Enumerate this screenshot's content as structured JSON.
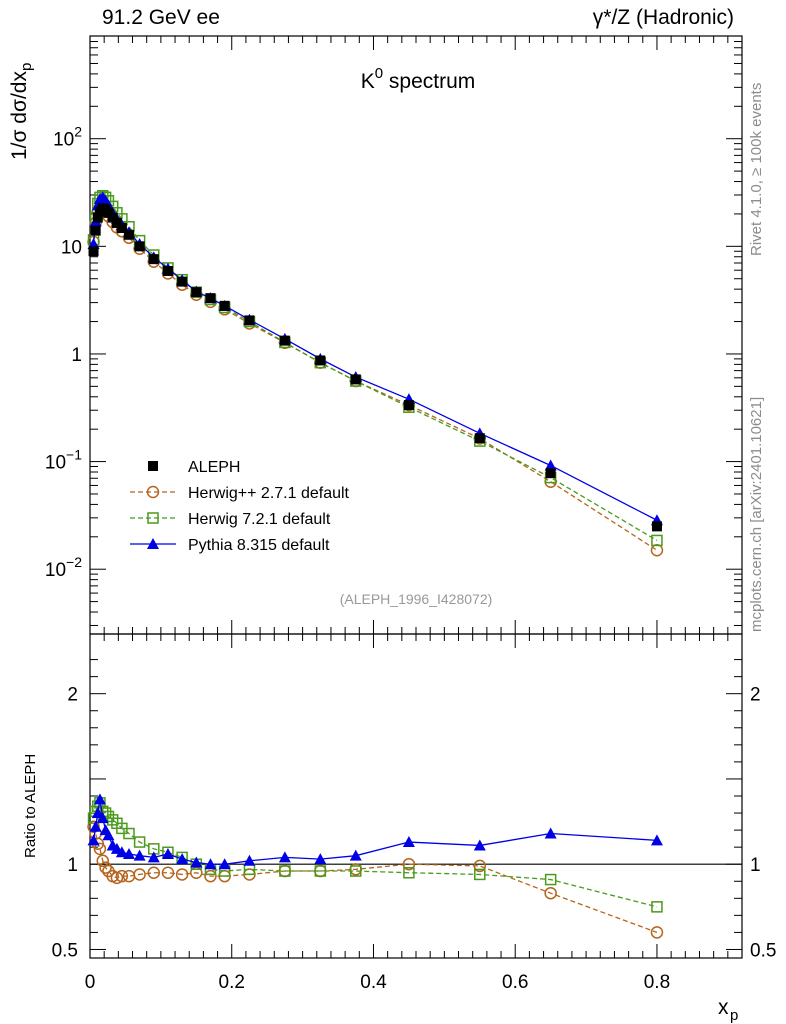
{
  "header": {
    "left": "91.2 GeV ee",
    "right": "γ*/Z (Hadronic)"
  },
  "side": {
    "rivet": "Rivet 4.1.0, ≥ 100k events",
    "mcplots": "mcplots.cern.ch [arXiv:2401.10621]"
  },
  "chart_data": [
    {
      "type": "line",
      "panel": "main",
      "title_base": "K",
      "title_sup": "0",
      "title_rest": " spectrum",
      "ylabel": "1/σ  dσ/dx",
      "ylabel_sub": "p",
      "yscale": "log",
      "xlim": [
        0,
        0.92
      ],
      "ylim": [
        0.0025,
        900
      ],
      "x_ticks": [
        0,
        0.2,
        0.4,
        0.6,
        0.8
      ],
      "y_tick_labels": [
        {
          "value": 0.01,
          "base": "10",
          "exp": "−2"
        },
        {
          "value": 0.1,
          "base": "10",
          "exp": "−1"
        },
        {
          "value": 1,
          "base": "1",
          "exp": ""
        },
        {
          "value": 10,
          "base": "10",
          "exp": ""
        },
        {
          "value": 100,
          "base": "10",
          "exp": "2"
        }
      ],
      "watermark": "(ALEPH_1996_I428072)",
      "legend_position": "lower-left",
      "x": [
        0.005,
        0.008,
        0.011,
        0.014,
        0.018,
        0.022,
        0.026,
        0.032,
        0.038,
        0.045,
        0.055,
        0.07,
        0.09,
        0.11,
        0.13,
        0.15,
        0.17,
        0.19,
        0.225,
        0.275,
        0.325,
        0.375,
        0.45,
        0.55,
        0.65,
        0.8
      ],
      "series": [
        {
          "name": "ALEPH",
          "color": "#000000",
          "marker": "square-filled",
          "dashed": false,
          "values": [
            9.0,
            14.0,
            18.5,
            21.0,
            22.5,
            22.0,
            20.5,
            18.5,
            16.5,
            14.8,
            12.8,
            10.0,
            7.6,
            5.9,
            4.7,
            3.75,
            3.3,
            2.8,
            2.05,
            1.33,
            0.87,
            0.58,
            0.335,
            0.165,
            0.078,
            0.025
          ]
        },
        {
          "name": "Herwig++ 2.7.1 default",
          "color": "#b5651d",
          "marker": "circle-open",
          "dashed": true,
          "values": [
            11.0,
            16.5,
            21.0,
            23.0,
            23.0,
            21.0,
            19.0,
            16.8,
            15.0,
            13.8,
            12.0,
            9.5,
            7.2,
            5.6,
            4.4,
            3.55,
            3.05,
            2.6,
            1.92,
            1.27,
            0.83,
            0.56,
            0.335,
            0.164,
            0.065,
            0.015
          ]
        },
        {
          "name": "Herwig 7.2.1 default",
          "color": "#4a9a1c",
          "marker": "square-open",
          "dashed": true,
          "values": [
            11.5,
            18.5,
            25.0,
            28.5,
            29.5,
            28.5,
            26.5,
            23.5,
            20.5,
            18.0,
            15.2,
            11.3,
            8.3,
            6.3,
            4.9,
            3.75,
            3.2,
            2.7,
            2.0,
            1.28,
            0.83,
            0.56,
            0.32,
            0.155,
            0.071,
            0.0185
          ]
        },
        {
          "name": "Pythia 8.315 default",
          "color": "#0000e6",
          "marker": "triangle-filled",
          "dashed": false,
          "values": [
            10.5,
            17.0,
            24.0,
            27.5,
            28.5,
            26.5,
            24.0,
            20.5,
            18.0,
            15.8,
            13.5,
            10.5,
            7.9,
            6.2,
            4.85,
            3.8,
            3.3,
            2.8,
            2.08,
            1.38,
            0.9,
            0.61,
            0.38,
            0.183,
            0.092,
            0.0285
          ]
        }
      ]
    },
    {
      "type": "line",
      "panel": "ratio",
      "ylabel": "Ratio to ALEPH",
      "xlabel": "x",
      "xlabel_sub": "p",
      "ylim": [
        0.45,
        2.35
      ],
      "y_ticks": [
        0.5,
        1,
        2
      ],
      "x_tick_labels": [
        "0",
        "0.2",
        "0.4",
        "0.6",
        "0.8"
      ],
      "x_ticks": [
        0,
        0.2,
        0.4,
        0.6,
        0.8
      ],
      "x": [
        0.005,
        0.008,
        0.011,
        0.014,
        0.018,
        0.022,
        0.026,
        0.032,
        0.038,
        0.045,
        0.055,
        0.07,
        0.09,
        0.11,
        0.13,
        0.15,
        0.17,
        0.19,
        0.225,
        0.275,
        0.325,
        0.375,
        0.45,
        0.55,
        0.65,
        0.8
      ],
      "series": [
        {
          "name": "Herwig++ 2.7.1 default",
          "color": "#b5651d",
          "marker": "circle-open",
          "dashed": true,
          "values": [
            1.22,
            1.18,
            1.12,
            1.09,
            1.02,
            0.98,
            0.96,
            0.93,
            0.92,
            0.93,
            0.93,
            0.94,
            0.95,
            0.95,
            0.94,
            0.95,
            0.93,
            0.93,
            0.94,
            0.96,
            0.96,
            0.97,
            1.0,
            0.99,
            0.83,
            0.6
          ]
        },
        {
          "name": "Herwig 7.2.1 default",
          "color": "#4a9a1c",
          "marker": "square-open",
          "dashed": true,
          "values": [
            1.27,
            1.31,
            1.34,
            1.36,
            1.31,
            1.3,
            1.28,
            1.26,
            1.24,
            1.21,
            1.18,
            1.13,
            1.09,
            1.07,
            1.04,
            1.0,
            0.97,
            0.96,
            0.97,
            0.96,
            0.96,
            0.96,
            0.95,
            0.94,
            0.91,
            0.75
          ]
        },
        {
          "name": "Pythia 8.315 default",
          "color": "#0000e6",
          "marker": "triangle-filled",
          "dashed": false,
          "values": [
            1.14,
            1.22,
            1.3,
            1.38,
            1.27,
            1.2,
            1.17,
            1.11,
            1.09,
            1.07,
            1.06,
            1.05,
            1.04,
            1.06,
            1.03,
            1.01,
            1.0,
            1.0,
            1.02,
            1.04,
            1.03,
            1.05,
            1.13,
            1.11,
            1.18,
            1.14
          ]
        }
      ]
    }
  ]
}
